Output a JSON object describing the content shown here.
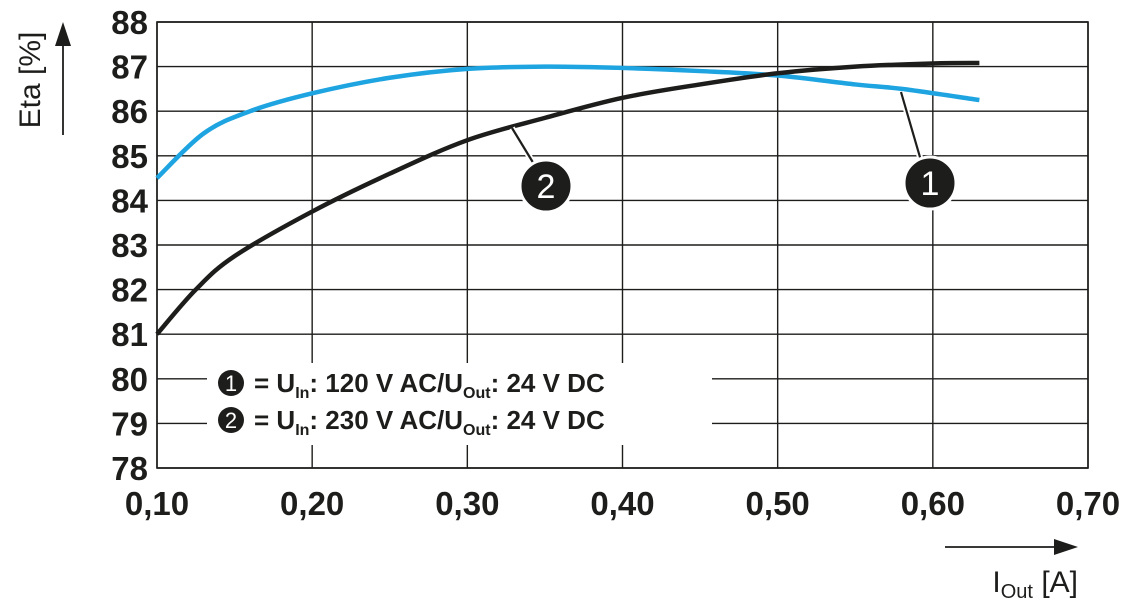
{
  "chart_data": {
    "type": "line",
    "xlabel": "I",
    "xlabel_sub": "Out",
    "xlabel_unit": " [A]",
    "ylabel": "Eta [%]",
    "xlim": [
      0.1,
      0.7
    ],
    "ylim": [
      78,
      88
    ],
    "x_ticks": [
      "0,10",
      "0,20",
      "0,30",
      "0,40",
      "0,50",
      "0,60",
      "0,70"
    ],
    "y_ticks": [
      "78",
      "79",
      "80",
      "81",
      "82",
      "83",
      "84",
      "85",
      "86",
      "87",
      "88"
    ],
    "grid": true,
    "series": [
      {
        "marker": "1",
        "color": "#1ea4e0",
        "x": [
          0.1,
          0.13,
          0.16,
          0.2,
          0.25,
          0.3,
          0.35,
          0.4,
          0.45,
          0.5,
          0.55,
          0.58,
          0.63
        ],
        "y": [
          84.5,
          85.5,
          86.0,
          86.4,
          86.75,
          86.95,
          87.0,
          86.97,
          86.9,
          86.8,
          86.6,
          86.5,
          86.25
        ]
      },
      {
        "marker": "2",
        "color": "#1d1d1b",
        "x": [
          0.1,
          0.125,
          0.15,
          0.2,
          0.25,
          0.3,
          0.35,
          0.4,
          0.45,
          0.5,
          0.55,
          0.6,
          0.63
        ],
        "y": [
          81.0,
          82.0,
          82.75,
          83.75,
          84.6,
          85.35,
          85.85,
          86.3,
          86.6,
          86.85,
          87.0,
          87.07,
          87.08
        ]
      }
    ],
    "legend": [
      {
        "marker": "1",
        "text_a": "= U",
        "sub_a": "In",
        "text_b": ": 120 V AC/U",
        "sub_b": "Out",
        "text_c": ": 24 V DC"
      },
      {
        "marker": "2",
        "text_a": "= U",
        "sub_a": "In",
        "text_b": ": 230 V AC/U",
        "sub_b": "Out",
        "text_c": ": 24 V DC"
      }
    ]
  }
}
